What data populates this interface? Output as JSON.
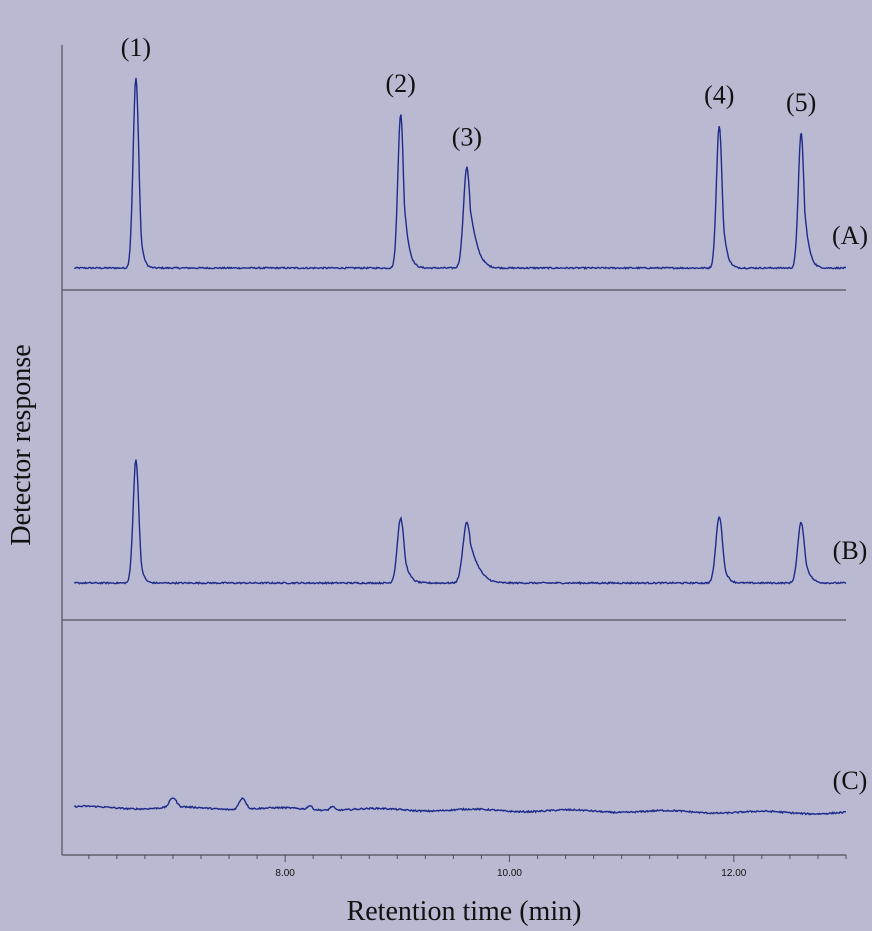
{
  "chart_data": {
    "type": "line",
    "xlabel": "Retention time (min)",
    "ylabel": "Detector response",
    "xlim": [
      6.1,
      13.0
    ],
    "x_ticks": [
      "8.00",
      "10.00",
      "12.00"
    ],
    "x_tick_values": [
      8.0,
      10.0,
      12.0
    ],
    "minor_tick_step": 0.25,
    "colors": {
      "background": "#b9b9d2",
      "trace": "#1f2a8a",
      "axis": "#505058",
      "text": "#111111"
    },
    "peak_labels": [
      {
        "text": "(1)",
        "x": 6.67
      },
      {
        "text": "(2)",
        "x": 9.03
      },
      {
        "text": "(3)",
        "x": 9.62
      },
      {
        "text": "(4)",
        "x": 11.87
      },
      {
        "text": "(5)",
        "x": 12.6
      }
    ],
    "series": [
      {
        "name": "(A)",
        "baseline": 0.02,
        "peaks": [
          {
            "x": 6.67,
            "height": 1.0,
            "width": 0.025,
            "tail": 0.03
          },
          {
            "x": 9.03,
            "height": 0.81,
            "width": 0.025,
            "tail": 0.05
          },
          {
            "x": 9.62,
            "height": 0.53,
            "width": 0.03,
            "tail": 0.09
          },
          {
            "x": 11.87,
            "height": 0.75,
            "width": 0.025,
            "tail": 0.04
          },
          {
            "x": 12.6,
            "height": 0.71,
            "width": 0.025,
            "tail": 0.05
          }
        ]
      },
      {
        "name": "(B)",
        "baseline": 0.02,
        "peaks": [
          {
            "x": 6.67,
            "height": 0.65,
            "width": 0.025,
            "tail": 0.03
          },
          {
            "x": 9.03,
            "height": 0.34,
            "width": 0.03,
            "tail": 0.05
          },
          {
            "x": 9.62,
            "height": 0.32,
            "width": 0.035,
            "tail": 0.12
          },
          {
            "x": 11.87,
            "height": 0.35,
            "width": 0.03,
            "tail": 0.04
          },
          {
            "x": 12.6,
            "height": 0.32,
            "width": 0.03,
            "tail": 0.05
          }
        ]
      },
      {
        "name": "(C)",
        "baseline": 0.03,
        "peaks": [
          {
            "x": 7.0,
            "height": 0.05,
            "width": 0.03,
            "tail": 0.03
          },
          {
            "x": 7.62,
            "height": 0.06,
            "width": 0.03,
            "tail": 0.03
          },
          {
            "x": 8.22,
            "height": 0.02,
            "width": 0.02,
            "tail": 0.02
          },
          {
            "x": 8.42,
            "height": 0.02,
            "width": 0.02,
            "tail": 0.02
          }
        ]
      }
    ]
  }
}
